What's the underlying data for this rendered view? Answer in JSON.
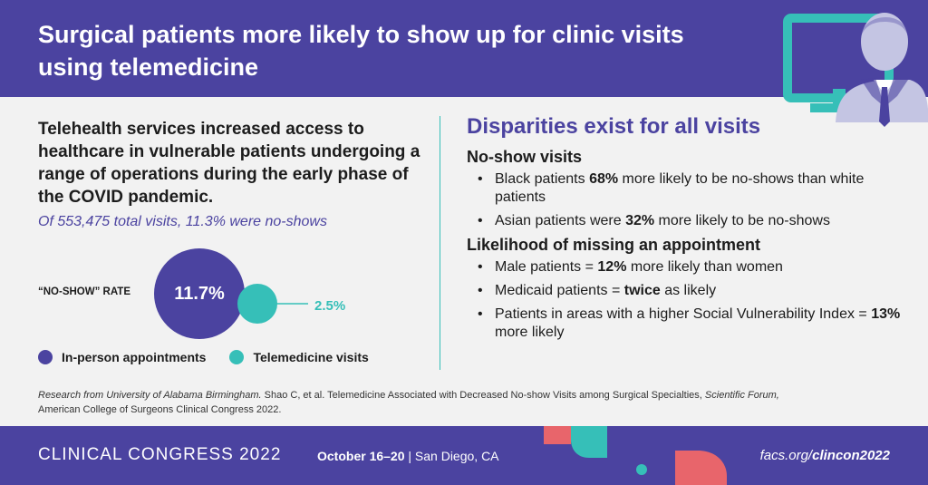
{
  "header": {
    "title": "Surgical patients more likely to show up for clinic visits using telemedicine"
  },
  "left": {
    "intro": "Telehealth services increased access to healthcare in vulnerable patients undergoing a range of operations during the early phase of the COVID pandemic.",
    "stat": "Of 553,475 total visits, 11.3% were no-shows",
    "rate_label": "“NO-SHOW” RATE",
    "in_person_value": "11.7%",
    "telemedicine_value": "2.5%",
    "in_person_rate": 11.7,
    "telemedicine_rate": 2.5,
    "legend": [
      {
        "label": "In-person appointments",
        "color": "#4b43a0"
      },
      {
        "label": "Telemedicine visits",
        "color": "#36bfb8"
      }
    ]
  },
  "right": {
    "title": "Disparities exist for all visits",
    "sections": [
      {
        "heading": "No-show visits",
        "bullets": [
          {
            "pre": "Black patients ",
            "bold": "68%",
            "post": " more likely to be no-shows than white patients"
          },
          {
            "pre": "Asian patients were ",
            "bold": "32%",
            "post": " more likely to be no-shows"
          }
        ]
      },
      {
        "heading": "Likelihood of missing an appointment",
        "bullets": [
          {
            "pre": "Male patients = ",
            "bold": "12%",
            "post": " more likely than women"
          },
          {
            "pre": "Medicaid patients = ",
            "bold": "twice",
            "post": " as likely"
          },
          {
            "pre": "Patients in areas with a higher Social Vulnerability Index = ",
            "bold": "13%",
            "post": " more likely"
          }
        ]
      }
    ]
  },
  "source": {
    "italic1": "Research from University of Alabama Birmingham.",
    "plain1": " Shao C, et al. Telemedicine Associated with Decreased No-show Visits among Surgical Specialties, ",
    "italic2": "Scientific Forum,",
    "plain2": "American College of Surgeons Clinical Congress 2022."
  },
  "footer": {
    "congress": "CLINICAL CONGRESS 2022",
    "dates": "October 16–20",
    "location": " | San Diego, CA",
    "url_prefix": "facs.org/",
    "url_bold": "clincon2022"
  },
  "colors": {
    "purple": "#4b43a0",
    "teal": "#36bfb8",
    "coral": "#e8656b",
    "lavender": "#c4c5e3"
  }
}
